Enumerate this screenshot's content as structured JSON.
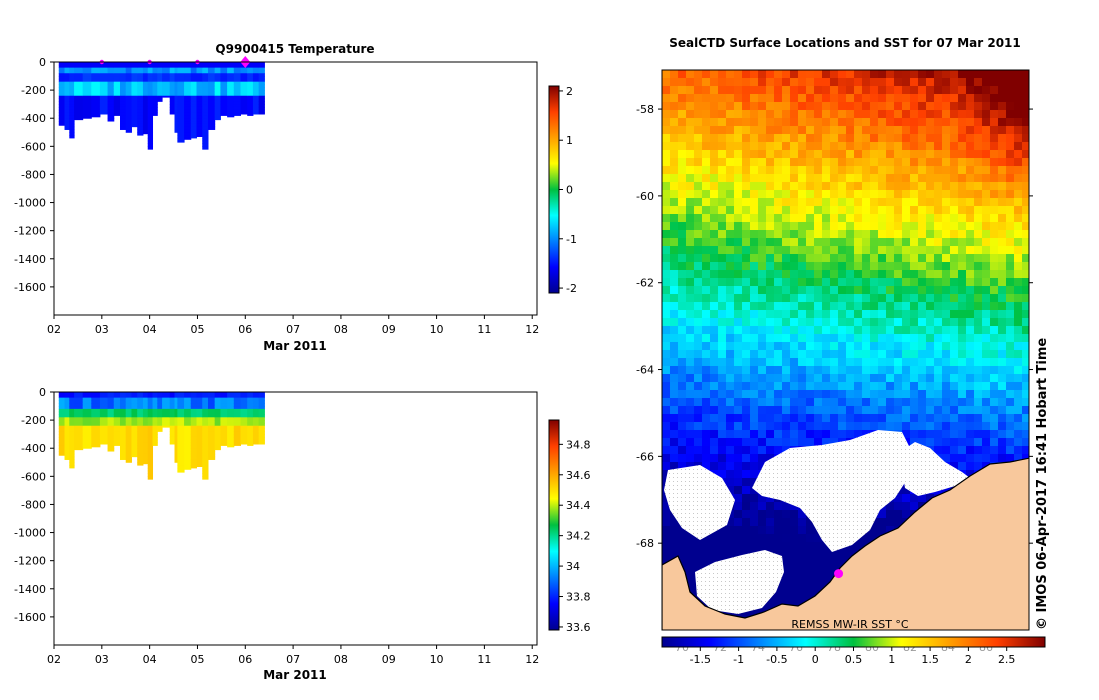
{
  "colors": {
    "profile_line": "#000000",
    "marker": "#ff00ff",
    "land": "#f8c89c",
    "ice": "#ffffff",
    "coast": "#000000"
  },
  "chart_data": [
    {
      "type": "heatmap",
      "title": "Q9900415  Temperature",
      "xlabel": "Mar 2011",
      "ylabel": "",
      "xticks": [
        "02",
        "03",
        "04",
        "05",
        "06",
        "07",
        "08",
        "09",
        "10",
        "11",
        "12"
      ],
      "xlim": [
        2,
        12.1
      ],
      "yticks": [
        0,
        -200,
        -400,
        -600,
        -800,
        -1000,
        -1200,
        -1400,
        -1600
      ],
      "ylim": [
        -1800,
        0
      ],
      "colorbar": {
        "ticks": [
          -2,
          -1,
          0,
          1,
          2
        ],
        "min": -2.1,
        "max": 2.1
      },
      "data_extent": {
        "x": [
          2.1,
          6.4
        ]
      },
      "profile_markers_x": [
        3.0,
        4.0,
        5.0
      ],
      "current_marker_x": 6.0,
      "profiles": [
        {
          "x": 2.1,
          "bottom": -450
        },
        {
          "x": 2.22,
          "bottom": -480
        },
        {
          "x": 2.32,
          "bottom": -540
        },
        {
          "x": 2.42,
          "bottom": -410
        },
        {
          "x": 2.6,
          "bottom": -400
        },
        {
          "x": 2.78,
          "bottom": -390
        },
        {
          "x": 2.96,
          "bottom": -370
        },
        {
          "x": 3.12,
          "bottom": -420
        },
        {
          "x": 3.25,
          "bottom": -380
        },
        {
          "x": 3.38,
          "bottom": -480
        },
        {
          "x": 3.5,
          "bottom": -500
        },
        {
          "x": 3.62,
          "bottom": -460
        },
        {
          "x": 3.74,
          "bottom": -520
        },
        {
          "x": 3.86,
          "bottom": -510
        },
        {
          "x": 3.96,
          "bottom": -620
        },
        {
          "x": 4.06,
          "bottom": -380
        },
        {
          "x": 4.16,
          "bottom": -280
        },
        {
          "x": 4.26,
          "bottom": -250
        },
        {
          "x": 4.42,
          "bottom": -370
        },
        {
          "x": 4.52,
          "bottom": -500
        },
        {
          "x": 4.58,
          "bottom": -570
        },
        {
          "x": 4.72,
          "bottom": -550
        },
        {
          "x": 4.86,
          "bottom": -540
        },
        {
          "x": 4.98,
          "bottom": -530
        },
        {
          "x": 5.1,
          "bottom": -620
        },
        {
          "x": 5.22,
          "bottom": -480
        },
        {
          "x": 5.36,
          "bottom": -410
        },
        {
          "x": 5.48,
          "bottom": -380
        },
        {
          "x": 5.62,
          "bottom": -390
        },
        {
          "x": 5.76,
          "bottom": -380
        },
        {
          "x": 5.9,
          "bottom": -370
        },
        {
          "x": 6.04,
          "bottom": -380
        },
        {
          "x": 6.16,
          "bottom": -370
        },
        {
          "x": 6.28,
          "bottom": -370
        }
      ]
    },
    {
      "type": "heatmap",
      "title": "",
      "xlabel": "Mar 2011",
      "ylabel": "",
      "xticks": [
        "02",
        "03",
        "04",
        "05",
        "06",
        "07",
        "08",
        "09",
        "10",
        "11",
        "12"
      ],
      "xlim": [
        2,
        12.1
      ],
      "yticks": [
        0,
        -200,
        -400,
        -600,
        -800,
        -1000,
        -1200,
        -1400,
        -1600
      ],
      "ylim": [
        -1800,
        0
      ],
      "colorbar": {
        "ticks": [
          33.6,
          33.8,
          34,
          34.2,
          34.4,
          34.6,
          34.8
        ],
        "min": 33.58,
        "max": 34.96
      },
      "data_extent": {
        "x": [
          2.1,
          6.4
        ]
      }
    },
    {
      "type": "heatmap",
      "title": "SealCTD Surface Locations and SST for 07 Mar 2011",
      "xlabel": "",
      "ylabel": "",
      "xticks": [
        70,
        72,
        74,
        76,
        78,
        80,
        82,
        84,
        86
      ],
      "yticks": [
        -58,
        -60,
        -62,
        -64,
        -66,
        -68
      ],
      "ylim": [
        -70,
        -57.1
      ],
      "annotation": "REMSS MW-IR SST °C",
      "side_label": "© IMOS 06-Apr-2017 16:41 Hobart Time",
      "colorbar": {
        "ticks": [
          -1.5,
          -1,
          -0.5,
          0,
          0.5,
          1,
          1.5,
          2,
          2.5
        ],
        "min": -2.0,
        "max": 3.0
      },
      "seal_position": {
        "lon": 77.9,
        "lat": -68.7
      }
    }
  ]
}
